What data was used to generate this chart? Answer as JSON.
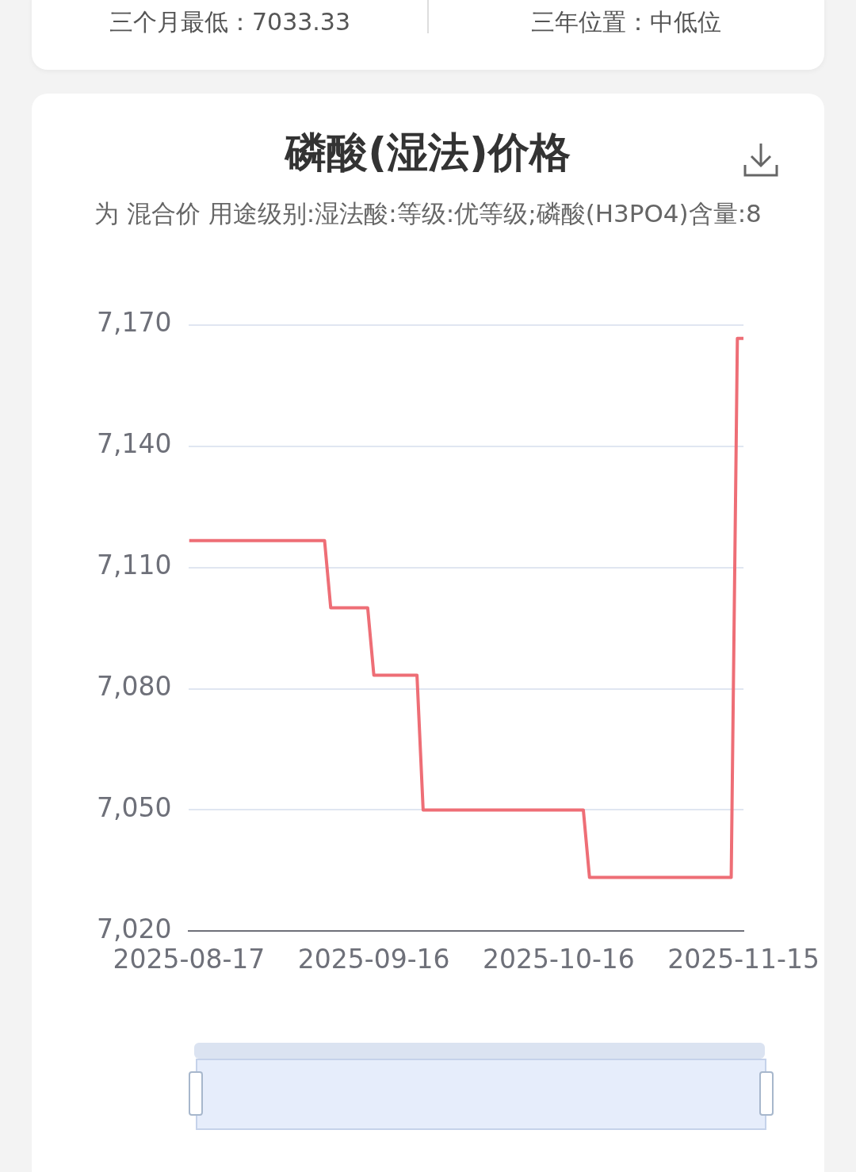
{
  "chart_data": {
    "type": "line",
    "title": "磷酸(湿法)价格",
    "subtitle": "为 混合价 用途级别:湿法酸:等级:优等级;磷酸(H3PO4)含量:8",
    "annotations": [
      "三个月最低：7033.33",
      "三年位置：中低位"
    ],
    "x": [
      "2025-08-17",
      "2025-09-08",
      "2025-09-09",
      "2025-09-15",
      "2025-09-16",
      "2025-09-23",
      "2025-09-24",
      "2025-10-16",
      "2025-10-20",
      "2025-10-21",
      "2025-11-13",
      "2025-11-14",
      "2025-11-15"
    ],
    "series": [
      {
        "color": "#ee6e76",
        "values": [
          7116.67,
          7116.67,
          7100,
          7100,
          7083.33,
          7083.33,
          7050,
          7050,
          7050,
          7033.33,
          7033.33,
          7166.67,
          7166.67
        ]
      }
    ],
    "xlim": [
      "2025-08-17",
      "2025-11-15"
    ],
    "xticks": [
      "2025-08-17",
      "2025-09-16",
      "2025-10-16",
      "2025-11-15"
    ],
    "ylim": [
      7020,
      7170
    ],
    "yticks": [
      {
        "value": 7020,
        "label": "7,020"
      },
      {
        "value": 7050,
        "label": "7,050"
      },
      {
        "value": 7080,
        "label": "7,080"
      },
      {
        "value": 7110,
        "label": "7,110"
      },
      {
        "value": 7140,
        "label": "7,140"
      },
      {
        "value": 7170,
        "label": "7,170"
      }
    ],
    "grid": "y",
    "legend": false
  }
}
